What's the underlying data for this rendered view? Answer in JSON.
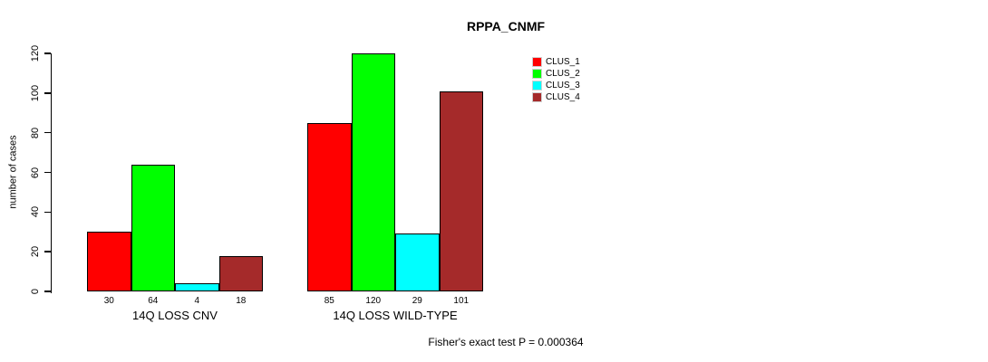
{
  "chart_data": {
    "type": "bar",
    "title": "RPPA_CNMF",
    "ylabel": "number of cases",
    "xlabel": "",
    "categories": [
      "14Q LOSS CNV",
      "14Q LOSS WILD-TYPE"
    ],
    "series": [
      {
        "name": "CLUS_1",
        "color": "#FF0000",
        "values": [
          30,
          85
        ]
      },
      {
        "name": "CLUS_2",
        "color": "#00FF00",
        "values": [
          64,
          120
        ]
      },
      {
        "name": "CLUS_3",
        "color": "#00FFFF",
        "values": [
          4,
          29
        ]
      },
      {
        "name": "CLUS_4",
        "color": "#A52A2A",
        "values": [
          18,
          101
        ]
      }
    ],
    "ylim": [
      0,
      120
    ],
    "yticks": [
      0,
      20,
      40,
      60,
      80,
      100,
      120
    ],
    "grid": false,
    "legend_position": "right",
    "bar_border_color": "#000000",
    "annotation": "Fisher's exact test P = 0.000364"
  }
}
